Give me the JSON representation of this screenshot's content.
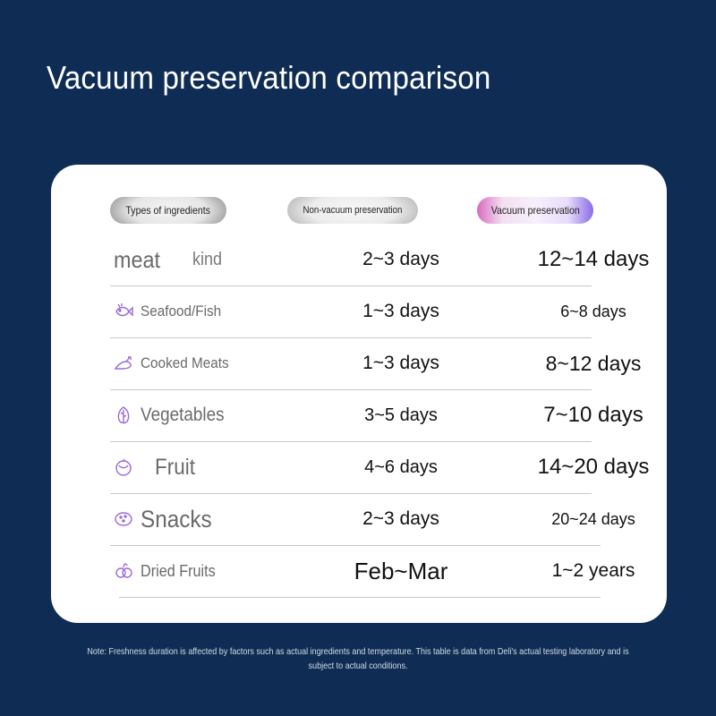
{
  "title": "Vacuum preservation comparison",
  "headers": {
    "types": "Types of ingredients",
    "non_vacuum": "Non-vacuum preservation",
    "vacuum": "Vacuum preservation"
  },
  "rows": [
    {
      "label_main": "meat",
      "label_suffix": "kind",
      "icon": "",
      "non_vacuum": "2~3 days",
      "vacuum": "12~14 days"
    },
    {
      "label_main": "Seafood/Fish",
      "icon": "fish-icon",
      "non_vacuum": "1~3 days",
      "vacuum": "6~8 days"
    },
    {
      "label_main": "Cooked Meats",
      "icon": "drumstick-icon",
      "non_vacuum": "1~3 days",
      "vacuum": "8~12 days"
    },
    {
      "label_main": "Vegetables",
      "icon": "leaf-icon",
      "non_vacuum": "3~5 days",
      "vacuum": "7~10 days"
    },
    {
      "label_main": "Fruit",
      "icon": "fruit-icon",
      "non_vacuum": "4~6 days",
      "vacuum": "14~20 days"
    },
    {
      "label_main": "Snacks",
      "icon": "cookie-icon",
      "non_vacuum": "2~3 days",
      "vacuum": "20~24 days"
    },
    {
      "label_main": "Dried Fruits",
      "icon": "dried-fruit-icon",
      "non_vacuum": "Feb~Mar",
      "vacuum": "1~2 years"
    }
  ],
  "note": "Note: Freshness duration is affected by factors such as actual ingredients and temperature. This table is data from Deli's actual testing laboratory and is subject to actual conditions.",
  "colors": {
    "background": "#0f2d54",
    "card": "#ffffff",
    "icon_accent": "#9b6bd6",
    "vacuum_gradient_left": "#d86bbf",
    "vacuum_gradient_right": "#8a6ce8"
  }
}
